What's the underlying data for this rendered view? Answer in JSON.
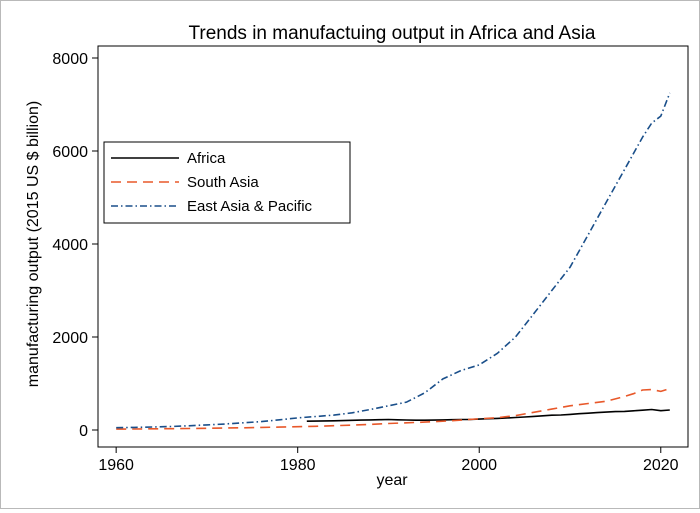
{
  "chart_data": {
    "type": "line",
    "title": "Trends in manufactuing output in Africa and Asia",
    "xlabel": "year",
    "ylabel": "manufacturing output (2015 US $ billion)",
    "xlim": [
      1960,
      2021
    ],
    "ylim": [
      0,
      8000
    ],
    "xticks": [
      1960,
      1980,
      2000,
      2020
    ],
    "yticks": [
      0,
      2000,
      4000,
      6000,
      8000
    ],
    "legend_position": "upper-left",
    "series": [
      {
        "name": "Africa",
        "color": "#000000",
        "style": "solid",
        "x": [
          1981,
          1982,
          1983,
          1984,
          1985,
          1986,
          1987,
          1988,
          1989,
          1990,
          1991,
          1992,
          1993,
          1994,
          1995,
          1996,
          1997,
          1998,
          1999,
          2000,
          2001,
          2002,
          2003,
          2004,
          2005,
          2006,
          2007,
          2008,
          2009,
          2010,
          2011,
          2012,
          2013,
          2014,
          2015,
          2016,
          2017,
          2018,
          2019,
          2020,
          2021
        ],
        "y": [
          190,
          192,
          195,
          198,
          203,
          208,
          212,
          218,
          222,
          225,
          220,
          215,
          210,
          210,
          212,
          218,
          222,
          225,
          228,
          235,
          243,
          250,
          258,
          268,
          280,
          292,
          305,
          318,
          322,
          335,
          350,
          362,
          375,
          385,
          395,
          400,
          412,
          425,
          440,
          415,
          430
        ]
      },
      {
        "name": "South Asia",
        "color": "#e8582a",
        "style": "dashed",
        "x": [
          1960,
          1962,
          1964,
          1966,
          1968,
          1970,
          1972,
          1974,
          1976,
          1978,
          1980,
          1982,
          1984,
          1986,
          1988,
          1990,
          1992,
          1994,
          1996,
          1998,
          2000,
          2002,
          2004,
          2006,
          2008,
          2010,
          2012,
          2014,
          2016,
          2017,
          2018,
          2019,
          2020,
          2021
        ],
        "y": [
          20,
          22,
          25,
          28,
          32,
          37,
          42,
          48,
          55,
          62,
          70,
          80,
          92,
          105,
          120,
          140,
          155,
          170,
          190,
          212,
          240,
          265,
          310,
          380,
          450,
          520,
          570,
          620,
          720,
          780,
          860,
          870,
          830,
          890
        ]
      },
      {
        "name": "East Asia & Pacific",
        "color": "#1a4f8a",
        "style": "dash-dot",
        "x": [
          1960,
          1962,
          1964,
          1966,
          1968,
          1970,
          1972,
          1974,
          1976,
          1978,
          1980,
          1982,
          1984,
          1986,
          1988,
          1990,
          1992,
          1994,
          1996,
          1998,
          2000,
          2002,
          2004,
          2006,
          2008,
          2010,
          2012,
          2014,
          2016,
          2018,
          2019,
          2020,
          2021
        ],
        "y": [
          50,
          55,
          65,
          75,
          90,
          110,
          130,
          155,
          180,
          220,
          260,
          290,
          320,
          370,
          440,
          520,
          600,
          800,
          1100,
          1280,
          1400,
          1650,
          2000,
          2500,
          3000,
          3500,
          4200,
          4900,
          5600,
          6300,
          6600,
          6750,
          7250
        ]
      }
    ]
  }
}
